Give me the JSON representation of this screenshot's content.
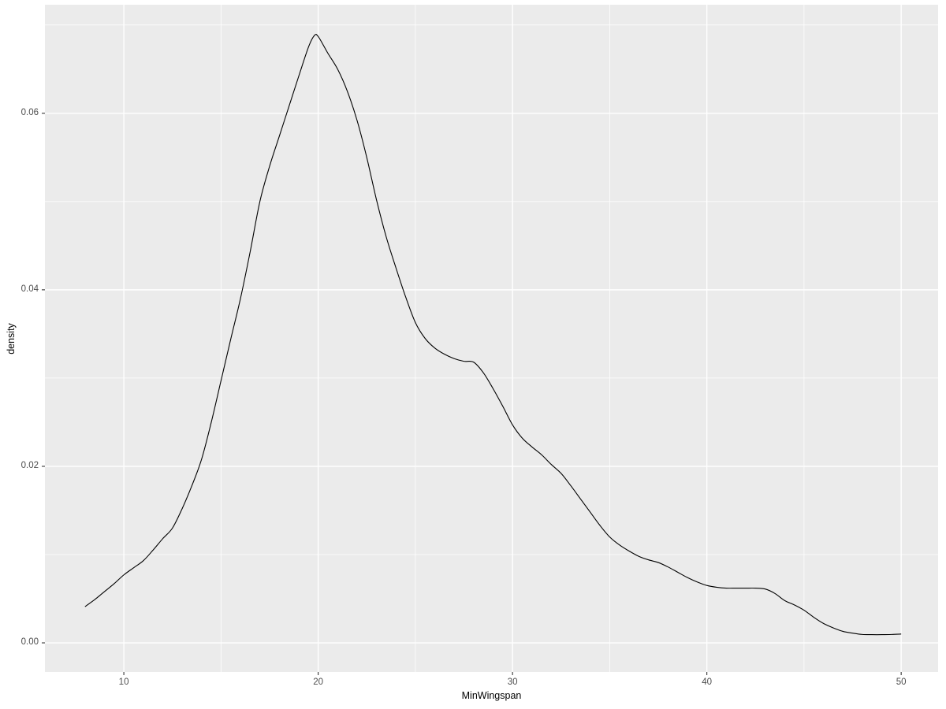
{
  "chart_data": {
    "type": "line",
    "subtype": "kernel-density-curve",
    "title": "",
    "xlabel": "MinWingspan",
    "ylabel": "density",
    "xlim": [
      5.94,
      51.9
    ],
    "ylim": [
      -0.0033,
      0.0723
    ],
    "x_ticks": {
      "major": [
        10,
        20,
        30,
        40,
        50
      ],
      "labels": [
        "10",
        "20",
        "30",
        "40",
        "50"
      ],
      "minor": [
        15,
        25,
        35,
        45
      ]
    },
    "y_ticks": {
      "major": [
        0,
        0.02,
        0.04,
        0.06
      ],
      "labels": [
        "0.00",
        "0.02",
        "0.04",
        "0.06"
      ],
      "minor": [
        0.01,
        0.03,
        0.05,
        0.07
      ]
    },
    "grid": {
      "major": true,
      "minor": true
    },
    "legend": "none",
    "peak": {
      "x": 19.8,
      "y": 0.0688
    },
    "series": [
      {
        "name": "density",
        "x": [
          8,
          8.5,
          9,
          9.5,
          10,
          10.5,
          11,
          11.5,
          12,
          12.5,
          13,
          13.5,
          14,
          14.5,
          15,
          15.5,
          16,
          16.5,
          17,
          17.5,
          18,
          18.5,
          19,
          19.5,
          19.8,
          20,
          20.5,
          21,
          21.5,
          22,
          22.5,
          23,
          23.5,
          24,
          24.5,
          25,
          25.5,
          26,
          26.5,
          27,
          27.5,
          28,
          28.5,
          29,
          29.5,
          30,
          30.5,
          31,
          31.5,
          32,
          32.5,
          33,
          33.5,
          34,
          34.5,
          35,
          35.5,
          36,
          36.5,
          37,
          37.5,
          38,
          38.5,
          39,
          39.5,
          40,
          40.5,
          41,
          41.5,
          42,
          42.5,
          43,
          43.5,
          44,
          44.5,
          45,
          45.5,
          46,
          46.5,
          47,
          47.5,
          48,
          48.5,
          49,
          49.5,
          50
        ],
        "y": [
          0.0041,
          0.0049,
          0.0058,
          0.0067,
          0.0077,
          0.0085,
          0.0093,
          0.0105,
          0.0118,
          0.013,
          0.0152,
          0.0178,
          0.0208,
          0.025,
          0.0297,
          0.0344,
          0.039,
          0.0443,
          0.05,
          0.054,
          0.0574,
          0.0608,
          0.0642,
          0.0675,
          0.0688,
          0.0687,
          0.0668,
          0.065,
          0.0625,
          0.0592,
          0.055,
          0.0502,
          0.046,
          0.0425,
          0.0392,
          0.0363,
          0.0345,
          0.0334,
          0.0327,
          0.0322,
          0.0319,
          0.0318,
          0.0306,
          0.0288,
          0.0268,
          0.0247,
          0.0232,
          0.0222,
          0.0213,
          0.0202,
          0.0192,
          0.0178,
          0.0163,
          0.0148,
          0.0133,
          0.012,
          0.0111,
          0.0104,
          0.0098,
          0.0094,
          0.0091,
          0.0086,
          0.008,
          0.0074,
          0.0069,
          0.0065,
          0.0063,
          0.0062,
          0.0062,
          0.0062,
          0.0062,
          0.0061,
          0.0056,
          0.0048,
          0.0043,
          0.0037,
          0.0029,
          0.0022,
          0.0017,
          0.0013,
          0.0011,
          0.00095,
          0.00093,
          0.00093,
          0.00095,
          0.001
        ]
      }
    ]
  },
  "style": {
    "page_bg": "#ffffff",
    "panel_bg": "#ebebeb",
    "grid_color": "#ffffff",
    "curve_color": "#000000",
    "tick_mark_color": "#333333",
    "tick_label_color": "#4d4d4d",
    "axis_title_color": "#000000"
  }
}
